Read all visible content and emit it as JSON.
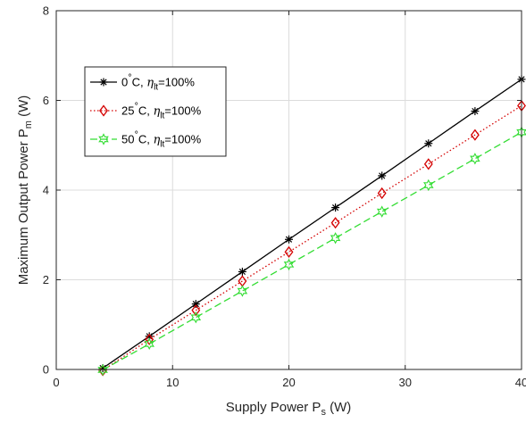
{
  "chart_data": {
    "type": "line",
    "xlabel": {
      "main": "Supply Power  P",
      "sub": "s",
      "unit": " (W)"
    },
    "ylabel": {
      "main": "Maximum Output Power  P",
      "sub": "m",
      "unit": " (W)"
    },
    "xlim": [
      0,
      40
    ],
    "ylim": [
      0,
      8
    ],
    "xticks": [
      0,
      10,
      20,
      30,
      40
    ],
    "yticks": [
      0,
      2,
      4,
      6,
      8
    ],
    "grid": true,
    "legend_position": "upper-left",
    "x": [
      4,
      8,
      12,
      16,
      20,
      24,
      28,
      32,
      36,
      40
    ],
    "series": [
      {
        "name": "0°C, ηlt=100%",
        "legend": {
          "temp": "0",
          "deg": "°",
          "unit": "C,  ",
          "eta": "η",
          "eta_sub": "lt",
          "tail": "=100%"
        },
        "color": "#000000",
        "dash": "",
        "marker": "asterisk",
        "values": [
          0.03,
          0.74,
          1.46,
          2.18,
          2.9,
          3.61,
          4.32,
          5.04,
          5.76,
          6.47
        ]
      },
      {
        "name": "25°C, ηlt=100%",
        "legend": {
          "temp": "25",
          "deg": "°",
          "unit": "C, ",
          "eta": "η",
          "eta_sub": "lt",
          "tail": "=100%"
        },
        "color": "#d40000",
        "dash": "1.5,2.5",
        "marker": "diamond",
        "values": [
          -0.02,
          0.67,
          1.32,
          1.97,
          2.62,
          3.27,
          3.93,
          4.58,
          5.23,
          5.88
        ]
      },
      {
        "name": "50°C, ηlt=100%",
        "legend": {
          "temp": "50",
          "deg": "°",
          "unit": "C, ",
          "eta": "η",
          "eta_sub": "lt",
          "tail": "=100%"
        },
        "color": "#33dd33",
        "dash": "8,4",
        "marker": "hexagram",
        "values": [
          -0.01,
          0.57,
          1.16,
          1.75,
          2.34,
          2.93,
          3.52,
          4.11,
          4.7,
          5.29
        ]
      }
    ]
  }
}
